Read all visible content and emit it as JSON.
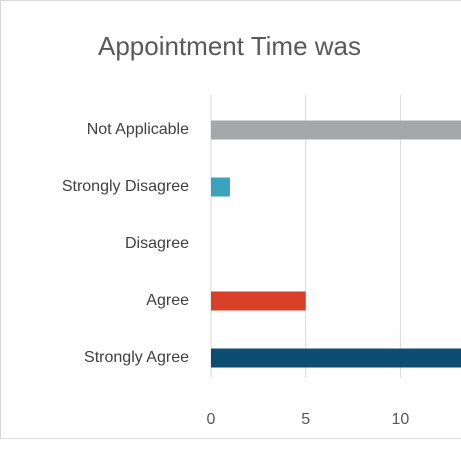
{
  "chart_data": {
    "type": "hbar",
    "title": "Appointment Time was",
    "categories": [
      "Not Applicable",
      "Strongly Disagree",
      "Disagree",
      "Agree",
      "Strongly Agree"
    ],
    "values": [
      14,
      1,
      0,
      5,
      15
    ],
    "colors": [
      "#a5a8ab",
      "#3aa3bb",
      null,
      "#d9402a",
      "#0e4d72"
    ],
    "xlim": [
      0,
      13.2
    ],
    "xticks": [
      0,
      5,
      10
    ],
    "grid": true
  }
}
